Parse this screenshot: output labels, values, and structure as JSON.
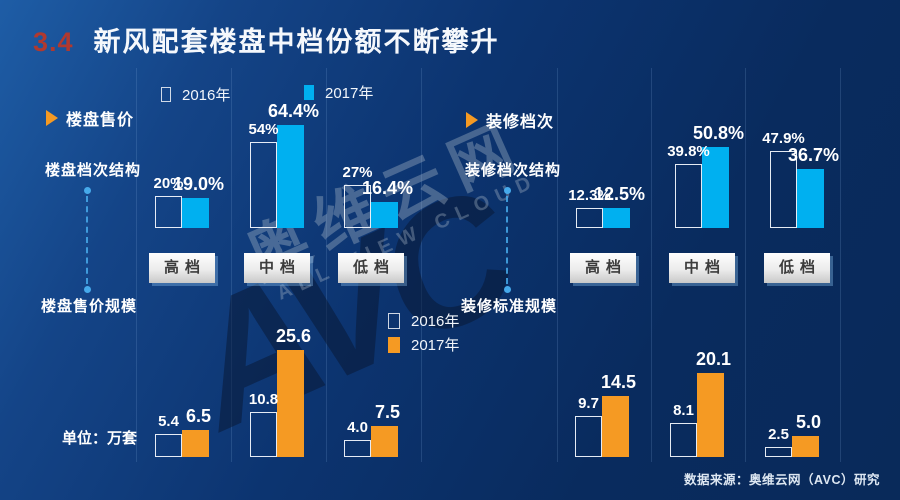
{
  "header": {
    "section_number": "3.4",
    "title": "新风配套楼盘中档份额不断攀升"
  },
  "sections": {
    "left_header": "楼盘售价",
    "right_header": "装修档次",
    "unit_label": "单位：万套"
  },
  "watermark": {
    "logo": "AVC",
    "cn": "奥维云网",
    "en": "ALL VIEW CLOUD"
  },
  "footer": {
    "source": "数据来源：奥维云网（AVC）研究"
  },
  "colors": {
    "cyan": "#00b0f0",
    "orange": "#f59a23",
    "title_red": "#b0392f",
    "bg_dark": "#092a5a",
    "bg_light": "#1e5da6",
    "button_text": "#3c3c3c",
    "connector": "#46aaeb"
  },
  "chart_data": [
    {
      "type": "bar",
      "title": "楼盘档次结构",
      "unit": "%",
      "categories": [
        "高档",
        "中档",
        "低档"
      ],
      "ylim": [
        0,
        70
      ],
      "grid": false,
      "legend_position": "top",
      "series": [
        {
          "name": "2016年",
          "style": "outline",
          "values": [
            20,
            54,
            27
          ],
          "labels": [
            "20%",
            "54%",
            "27%"
          ]
        },
        {
          "name": "2017年",
          "style": "solid-cyan",
          "values": [
            19.0,
            64.4,
            16.4
          ],
          "labels": [
            "19.0%",
            "64.4%",
            "16.4%"
          ]
        }
      ]
    },
    {
      "type": "bar",
      "title": "装修档次结构",
      "unit": "%",
      "categories": [
        "高档",
        "中档",
        "低档"
      ],
      "ylim": [
        0,
        70
      ],
      "grid": false,
      "legend_position": "shared-top",
      "series": [
        {
          "name": "2016年",
          "style": "outline",
          "values": [
            12.3,
            39.8,
            47.9
          ],
          "labels": [
            "12.3%",
            "39.8%",
            "47.9%"
          ]
        },
        {
          "name": "2017年",
          "style": "solid-cyan",
          "values": [
            12.5,
            50.8,
            36.7
          ],
          "labels": [
            "12.5%",
            "50.8%",
            "36.7%"
          ]
        }
      ]
    },
    {
      "type": "bar",
      "title": "楼盘售价规模",
      "unit": "万套",
      "categories": [
        "高档",
        "中档",
        "低档"
      ],
      "ylim": [
        0,
        28
      ],
      "grid": false,
      "legend_position": "middle",
      "series": [
        {
          "name": "2016年",
          "style": "outline",
          "values": [
            5.4,
            10.8,
            4.0
          ],
          "labels": [
            "5.4",
            "10.8",
            "4.0"
          ]
        },
        {
          "name": "2017年",
          "style": "solid-orange",
          "values": [
            6.5,
            25.6,
            7.5
          ],
          "labels": [
            "6.5",
            "25.6",
            "7.5"
          ]
        }
      ]
    },
    {
      "type": "bar",
      "title": "装修标准规模",
      "unit": "万套",
      "categories": [
        "高档",
        "中档",
        "低档"
      ],
      "ylim": [
        0,
        28
      ],
      "grid": false,
      "legend_position": "shared-middle",
      "series": [
        {
          "name": "2016年",
          "style": "outline",
          "values": [
            9.7,
            8.1,
            2.5
          ],
          "labels": [
            "9.7",
            "8.1",
            "2.5"
          ]
        },
        {
          "name": "2017年",
          "style": "solid-orange",
          "values": [
            14.5,
            20.1,
            5.0
          ],
          "labels": [
            "14.5",
            "20.1",
            "5.0"
          ]
        }
      ]
    }
  ]
}
